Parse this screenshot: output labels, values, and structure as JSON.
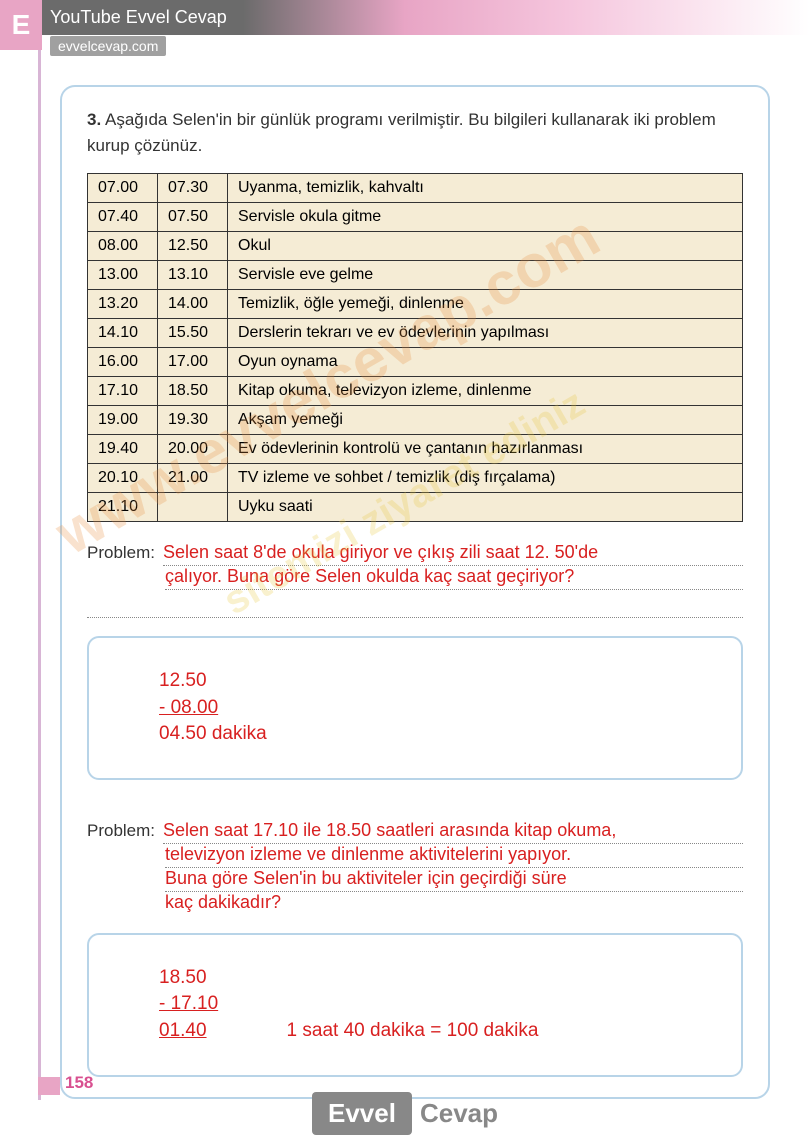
{
  "header": {
    "badge": "E",
    "youtube": "YouTube Evvel Cevap",
    "url": "evvelcevap.com"
  },
  "question": {
    "number": "3.",
    "text": "Aşağıda Selen'in bir günlük programı verilmiştir. Bu bilgileri kullanarak iki problem kurup çözünüz."
  },
  "table": {
    "rows": [
      [
        "07.00",
        "07.30",
        "Uyanma, temizlik, kahvaltı"
      ],
      [
        "07.40",
        "07.50",
        "Servisle okula gitme"
      ],
      [
        "08.00",
        "12.50",
        "Okul"
      ],
      [
        "13.00",
        "13.10",
        "Servisle eve gelme"
      ],
      [
        "13.20",
        "14.00",
        "Temizlik, öğle yemeği, dinlenme"
      ],
      [
        "14.10",
        "15.50",
        "Derslerin tekrarı ve ev ödevlerinin yapılması"
      ],
      [
        "16.00",
        "17.00",
        "Oyun oynama"
      ],
      [
        "17.10",
        "18.50",
        "Kitap okuma, televizyon izleme, dinlenme"
      ],
      [
        "19.00",
        "19.30",
        "Akşam yemeği"
      ],
      [
        "19.40",
        "20.00",
        "Ev ödevlerinin kontrolü ve çantanın hazırlanması"
      ],
      [
        "20.10",
        "21.00",
        "TV izleme ve sohbet / temizlik (diş fırçalama)"
      ],
      [
        "21.10",
        "",
        "Uyku saati"
      ]
    ]
  },
  "problem1": {
    "label": "Problem:",
    "line1": "Selen saat 8'de okula giriyor ve çıkış zili saat 12. 50'de",
    "line2": "çalıyor. Buna göre Selen okulda kaç saat geçiriyor?",
    "calc1": "12.50",
    "calc2": "- 08.00 ",
    "calc3": "04.50 dakika"
  },
  "problem2": {
    "label": "Problem:",
    "line1": "Selen saat 17.10 ile 18.50 saatleri arasında kitap okuma,",
    "line2": "televizyon izleme ve dinlenme aktivitelerini yapıyor.",
    "line3": "Buna göre Selen'in bu aktiviteler için geçirdiği süre",
    "line4": "kaç dakikadır?",
    "calc1": "18.50",
    "calc2": "- 17.10 ",
    "calc3": "01.40",
    "note": "1 saat 40 dakika = 100 dakika"
  },
  "pageNumber": "158",
  "footer": {
    "evvel": "Evvel",
    "cevap": "Cevap"
  },
  "watermarks": {
    "wm1": "www.evvelcevap.com",
    "wm2": "sitemizi ziyaret ediniz"
  }
}
